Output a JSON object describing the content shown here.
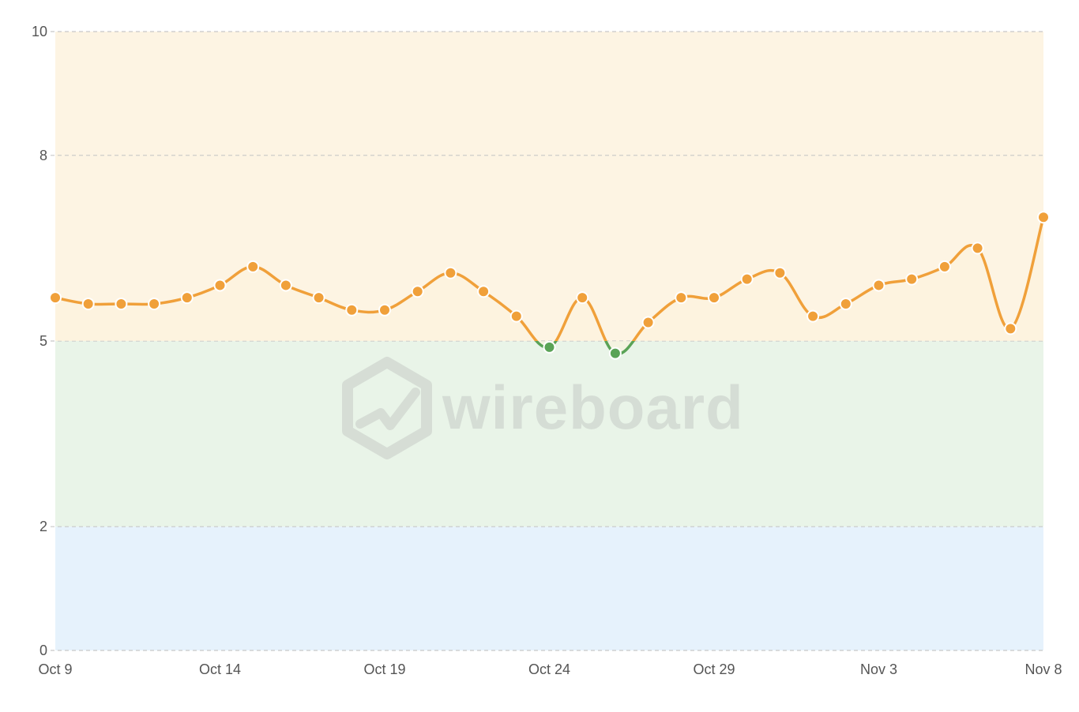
{
  "chart_data": {
    "type": "line",
    "title": "",
    "xlabel": "",
    "ylabel": "",
    "ylim": [
      0,
      10
    ],
    "y_ticks": [
      0,
      2,
      5,
      8,
      10
    ],
    "grid": true,
    "x_tick_labels": [
      "Oct 9",
      "Oct 14",
      "Oct 19",
      "Oct 24",
      "Oct 29",
      "Nov 3",
      "Nov 8"
    ],
    "x": [
      "Oct 9",
      "Oct 10",
      "Oct 11",
      "Oct 12",
      "Oct 13",
      "Oct 14",
      "Oct 15",
      "Oct 16",
      "Oct 17",
      "Oct 18",
      "Oct 19",
      "Oct 20",
      "Oct 21",
      "Oct 22",
      "Oct 23",
      "Oct 24",
      "Oct 25",
      "Oct 26",
      "Oct 27",
      "Oct 28",
      "Oct 29",
      "Oct 30",
      "Oct 31",
      "Nov 1",
      "Nov 2",
      "Nov 3",
      "Nov 4",
      "Nov 5",
      "Nov 6",
      "Nov 7",
      "Nov 8"
    ],
    "series": [
      {
        "values": [
          5.7,
          5.6,
          5.6,
          5.6,
          5.7,
          5.9,
          6.2,
          5.9,
          5.7,
          5.5,
          5.5,
          5.8,
          6.1,
          5.8,
          5.4,
          4.9,
          5.7,
          4.8,
          5.3,
          5.7,
          5.7,
          6.0,
          6.1,
          5.4,
          5.6,
          5.9,
          6.0,
          6.2,
          6.5,
          5.2,
          7.0
        ]
      }
    ],
    "bands": [
      {
        "from": 0,
        "to": 2,
        "color": "#e6f2fc"
      },
      {
        "from": 2,
        "to": 5,
        "color": "#e9f4e8"
      },
      {
        "from": 5,
        "to": 10,
        "color": "#fdf4e3"
      }
    ],
    "colors": {
      "line_above": "#f0a03a",
      "line_below": "#5aa357",
      "grid": "#c8c8c8",
      "axis_text": "#555555"
    }
  },
  "watermark": {
    "text": "wireboard",
    "icon": "hexagon-check-icon"
  }
}
